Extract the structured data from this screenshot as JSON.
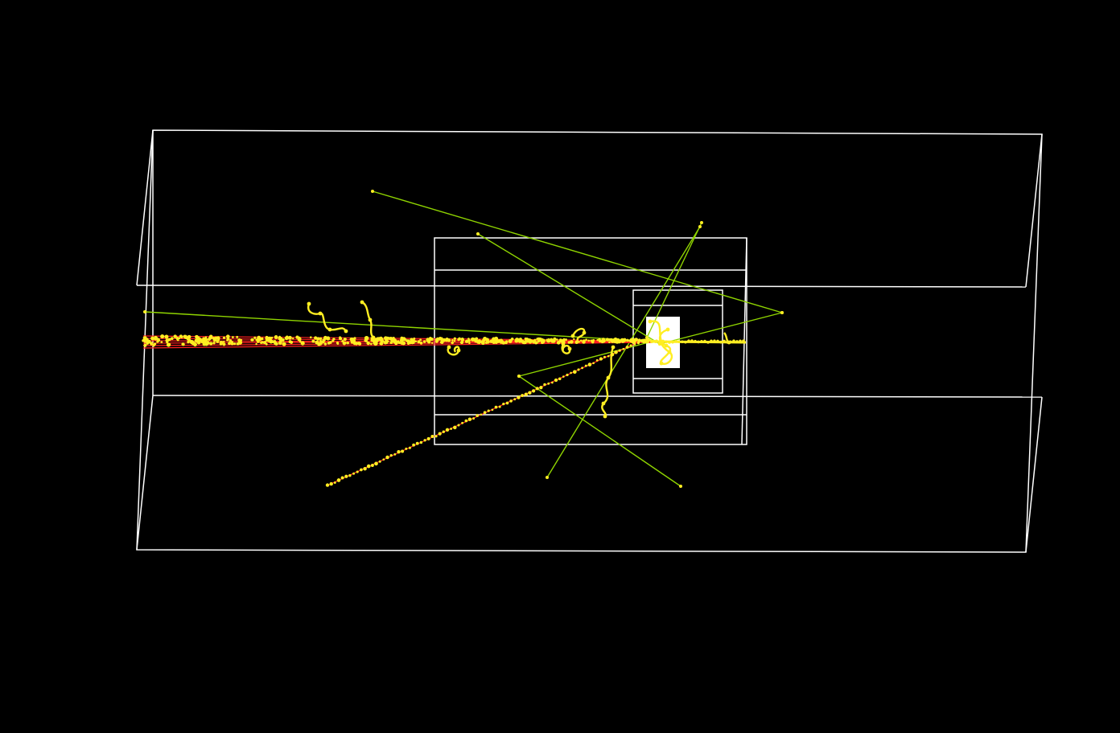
{
  "viewer": {
    "background": "#000000",
    "colors": {
      "geometry": "#ffffff",
      "gamma_track": "#8fd400",
      "charged_track": "#ff2020",
      "step_point": "#ffee22",
      "target": "#ffffff"
    },
    "icons": {
      "world_volume": "world-volume-icon",
      "target": "target-icon"
    }
  }
}
